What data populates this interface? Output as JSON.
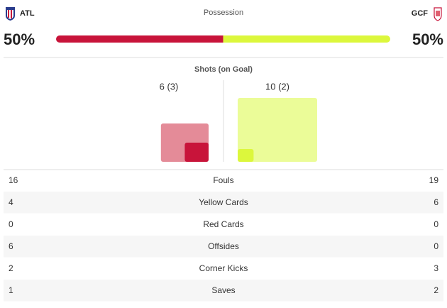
{
  "header": {
    "home_team": "ATL",
    "away_team": "GCF",
    "title": "Possession"
  },
  "possession": {
    "home": {
      "value": 50,
      "label": "50%"
    },
    "away": {
      "value": 50,
      "label": "50%"
    },
    "home_color": "#c8143a",
    "away_color": "#dcf73c"
  },
  "shots": {
    "title": "Shots (on Goal)",
    "home": {
      "total": 6,
      "on_goal": 3,
      "label": "6 (3)",
      "color": "#e48b98",
      "on_goal_color": "#c8143a"
    },
    "away": {
      "total": 10,
      "on_goal": 2,
      "label": "10 (2)",
      "color": "#ebfc98",
      "on_goal_color": "#dcf73c"
    }
  },
  "table": {
    "rows": [
      [
        "16",
        "Fouls",
        "19"
      ],
      [
        "4",
        "Yellow Cards",
        "6"
      ],
      [
        "0",
        "Red Cards",
        "0"
      ],
      [
        "6",
        "Offsides",
        "0"
      ],
      [
        "2",
        "Corner Kicks",
        "3"
      ],
      [
        "1",
        "Saves",
        "2"
      ]
    ]
  }
}
